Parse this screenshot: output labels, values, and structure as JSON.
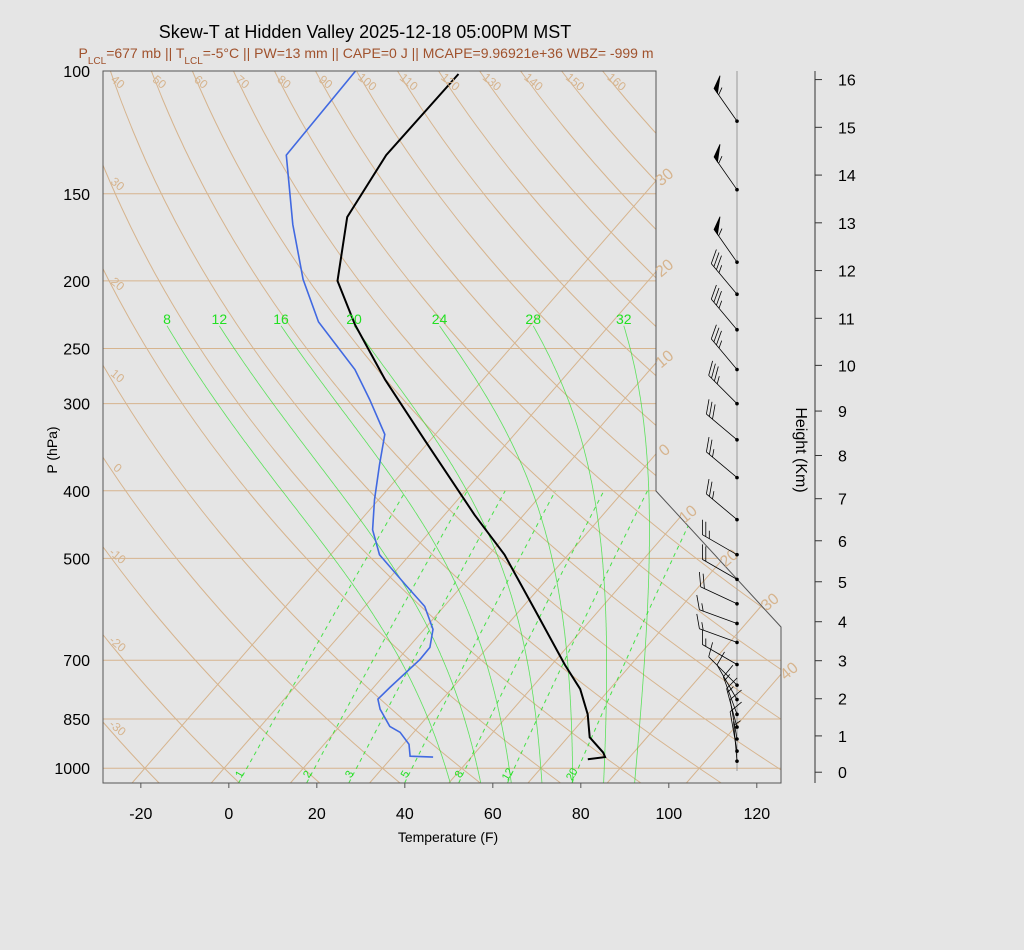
{
  "chart_data": {
    "type": "skewt",
    "title": "Skew-T at Hidden Valley 2025-12-18 05:00PM MST",
    "subtitle": [
      "P",
      "LCL",
      "=677 mb || T",
      "LCL",
      "=-5°C || PW=13 mm || CAPE=0 J || MCAPE=9.96921e+36 WBZ= -999 m"
    ],
    "xlabel": "Temperature (F)",
    "ylabel": "P (hPa)",
    "y2label": "Height (Km)",
    "xlim": [
      -28.6,
      125.5
    ],
    "xticks": [
      -20,
      0,
      20,
      40,
      60,
      80,
      100,
      120
    ],
    "ylim": [
      1050,
      100
    ],
    "log_y": true,
    "yticks": [
      100,
      150,
      200,
      250,
      300,
      400,
      500,
      700,
      850,
      1000
    ],
    "y2ticks": [
      0,
      1,
      2,
      3,
      4,
      5,
      6,
      7,
      8,
      9,
      10,
      11,
      12,
      13,
      14,
      15,
      16
    ],
    "grid": true,
    "guide_color": "#d6b48e",
    "moist_color": "#22e022",
    "series": [
      {
        "color": "#000000",
        "pressure": [
          971,
          964,
          949,
          903,
          837,
          770,
          710,
          592,
          494,
          433,
          338,
          277,
          231,
          200,
          162,
          132,
          101
        ],
        "values": [
          76.9,
          80.4,
          79.0,
          73.0,
          68.0,
          61.3,
          52.9,
          35.2,
          17.5,
          2.8,
          -23.4,
          -44.3,
          -62.0,
          -74.6,
          -85.0,
          -88.4,
          -88.0
        ]
      },
      {
        "color": "#4169e1",
        "pressure": [
          964,
          961,
          924,
          888,
          871,
          823,
          796,
          766,
          698,
          671,
          632,
          586,
          545,
          494,
          455,
          412,
          367,
          332,
          296,
          268,
          229,
          199,
          166,
          132,
          100
        ],
        "values": [
          41.3,
          35.9,
          33.3,
          28.9,
          25.4,
          19.8,
          17.3,
          17.7,
          19.0,
          18.9,
          16.0,
          9.6,
          0.8,
          -10.9,
          -17.4,
          -22.9,
          -28.7,
          -33.5,
          -43.8,
          -53.1,
          -70.8,
          -82.7,
          -95.9,
          -111.1,
          -112.0
        ]
      }
    ],
    "isotherms": [
      {
        "value": -30,
        "label": "30"
      },
      {
        "value": -20,
        "label": "20"
      },
      {
        "value": -10,
        "label": "10"
      },
      0,
      10,
      20,
      30,
      40
    ],
    "dry_adiabats": [
      -30,
      -20,
      -10,
      0,
      10,
      20,
      30,
      40,
      50,
      60,
      70,
      80,
      90,
      100,
      110,
      120,
      130,
      140,
      150,
      160
    ],
    "mixing_ratios": [
      1,
      2,
      3,
      5,
      8,
      12,
      20
    ],
    "moist_adiabats": [
      8,
      12,
      16,
      20,
      24,
      28,
      32
    ],
    "wind": {
      "color": "#000000",
      "pressure": [
        118,
        148,
        188,
        209,
        235,
        268,
        300,
        338,
        383,
        440,
        494,
        536,
        581,
        620,
        660,
        710,
        760,
        797,
        837,
        873,
        908,
        945,
        977
      ],
      "direction": [
        325,
        325,
        325,
        320,
        320,
        320,
        315,
        310,
        310,
        310,
        300,
        300,
        295,
        290,
        290,
        300,
        315,
        330,
        340,
        345,
        350,
        350,
        355
      ],
      "speed": [
        55,
        55,
        55,
        35,
        35,
        35,
        35,
        30,
        25,
        25,
        25,
        20,
        20,
        15,
        15,
        15,
        10,
        10,
        15,
        15,
        10,
        10,
        5
      ]
    }
  }
}
